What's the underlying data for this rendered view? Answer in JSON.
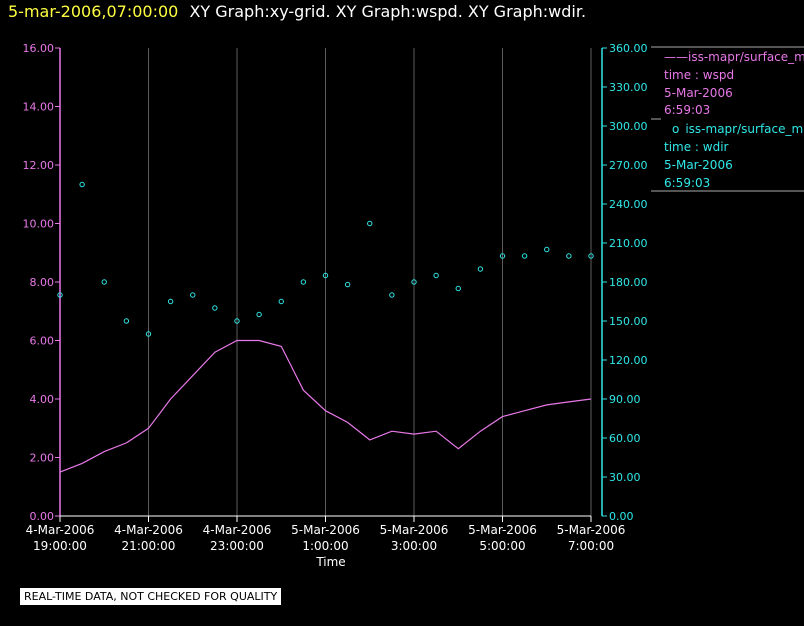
{
  "header": {
    "date_time": "5-mar-2006,07:00:00",
    "graphs": "XY Graph:xy-grid.  XY Graph:wspd.  XY Graph:wdir."
  },
  "legend": {
    "wspd": {
      "series": "iss-mapr/surface_m",
      "line1": "time : wspd",
      "line2": "5-Mar-2006",
      "line3": "6:59:03"
    },
    "wdir": {
      "series": "iss-mapr/surface_m",
      "line1": "time : wdir",
      "line2": "5-Mar-2006",
      "line3": "6:59:03"
    }
  },
  "disclaimer": "REAL-TIME DATA, NOT CHECKED FOR QUALITY",
  "colors": {
    "wspd": "#e878e8",
    "wdir": "#30e8e8",
    "grid": "#ffffff"
  },
  "chart_data": {
    "type": "scatter",
    "xlabel": "Time",
    "x_ticks": [
      {
        "date": "4-Mar-2006",
        "time": "19:00:00"
      },
      {
        "date": "4-Mar-2006",
        "time": "21:00:00"
      },
      {
        "date": "4-Mar-2006",
        "time": "23:00:00"
      },
      {
        "date": "5-Mar-2006",
        "time": "1:00:00"
      },
      {
        "date": "5-Mar-2006",
        "time": "3:00:00"
      },
      {
        "date": "5-Mar-2006",
        "time": "5:00:00"
      },
      {
        "date": "5-Mar-2006",
        "time": "7:00:00"
      }
    ],
    "xlim_hours": [
      -5,
      7
    ],
    "grid": true,
    "y_left": {
      "ticks": [
        "0.00",
        "2.00",
        "4.00",
        "6.00",
        "8.00",
        "10.00",
        "12.00",
        "14.00",
        "16.00"
      ],
      "ylim": [
        0,
        16
      ]
    },
    "y_right": {
      "ticks": [
        "0.00",
        "30.00",
        "60.00",
        "90.00",
        "120.00",
        "150.00",
        "180.00",
        "210.00",
        "240.00",
        "270.00",
        "300.00",
        "330.00",
        "360.00"
      ],
      "ylim": [
        0,
        360
      ]
    },
    "series": [
      {
        "key": "wspd",
        "style": "line",
        "axis": "left",
        "hours": [
          -5,
          -4.5,
          -4,
          -3.5,
          -3,
          -2.5,
          -2,
          -1.5,
          -1,
          -0.5,
          0,
          0.5,
          1,
          1.5,
          2,
          2.5,
          3,
          3.5,
          4,
          4.5,
          5,
          5.5,
          6,
          6.5,
          7
        ],
        "values": [
          1.5,
          1.8,
          2.2,
          2.5,
          3.0,
          4.0,
          4.8,
          5.6,
          6.0,
          6.0,
          5.8,
          4.3,
          3.6,
          3.2,
          2.6,
          2.9,
          2.8,
          2.9,
          2.3,
          2.9,
          3.4,
          3.6,
          3.8,
          3.9,
          4.0
        ]
      },
      {
        "key": "wdir",
        "style": "points",
        "axis": "right",
        "hours": [
          -5,
          -4.5,
          -4,
          -3.5,
          -3,
          -2.5,
          -2,
          -1.5,
          -1,
          -0.5,
          0,
          0.5,
          1,
          1.5,
          2,
          2.5,
          3,
          3.5,
          4,
          4.5,
          5,
          5.5,
          6,
          6.5,
          7
        ],
        "values": [
          170,
          255,
          180,
          150,
          140,
          165,
          170,
          160,
          150,
          155,
          165,
          180,
          185,
          178,
          225,
          170,
          180,
          185,
          175,
          190,
          200,
          200,
          205,
          200,
          200
        ]
      }
    ]
  }
}
